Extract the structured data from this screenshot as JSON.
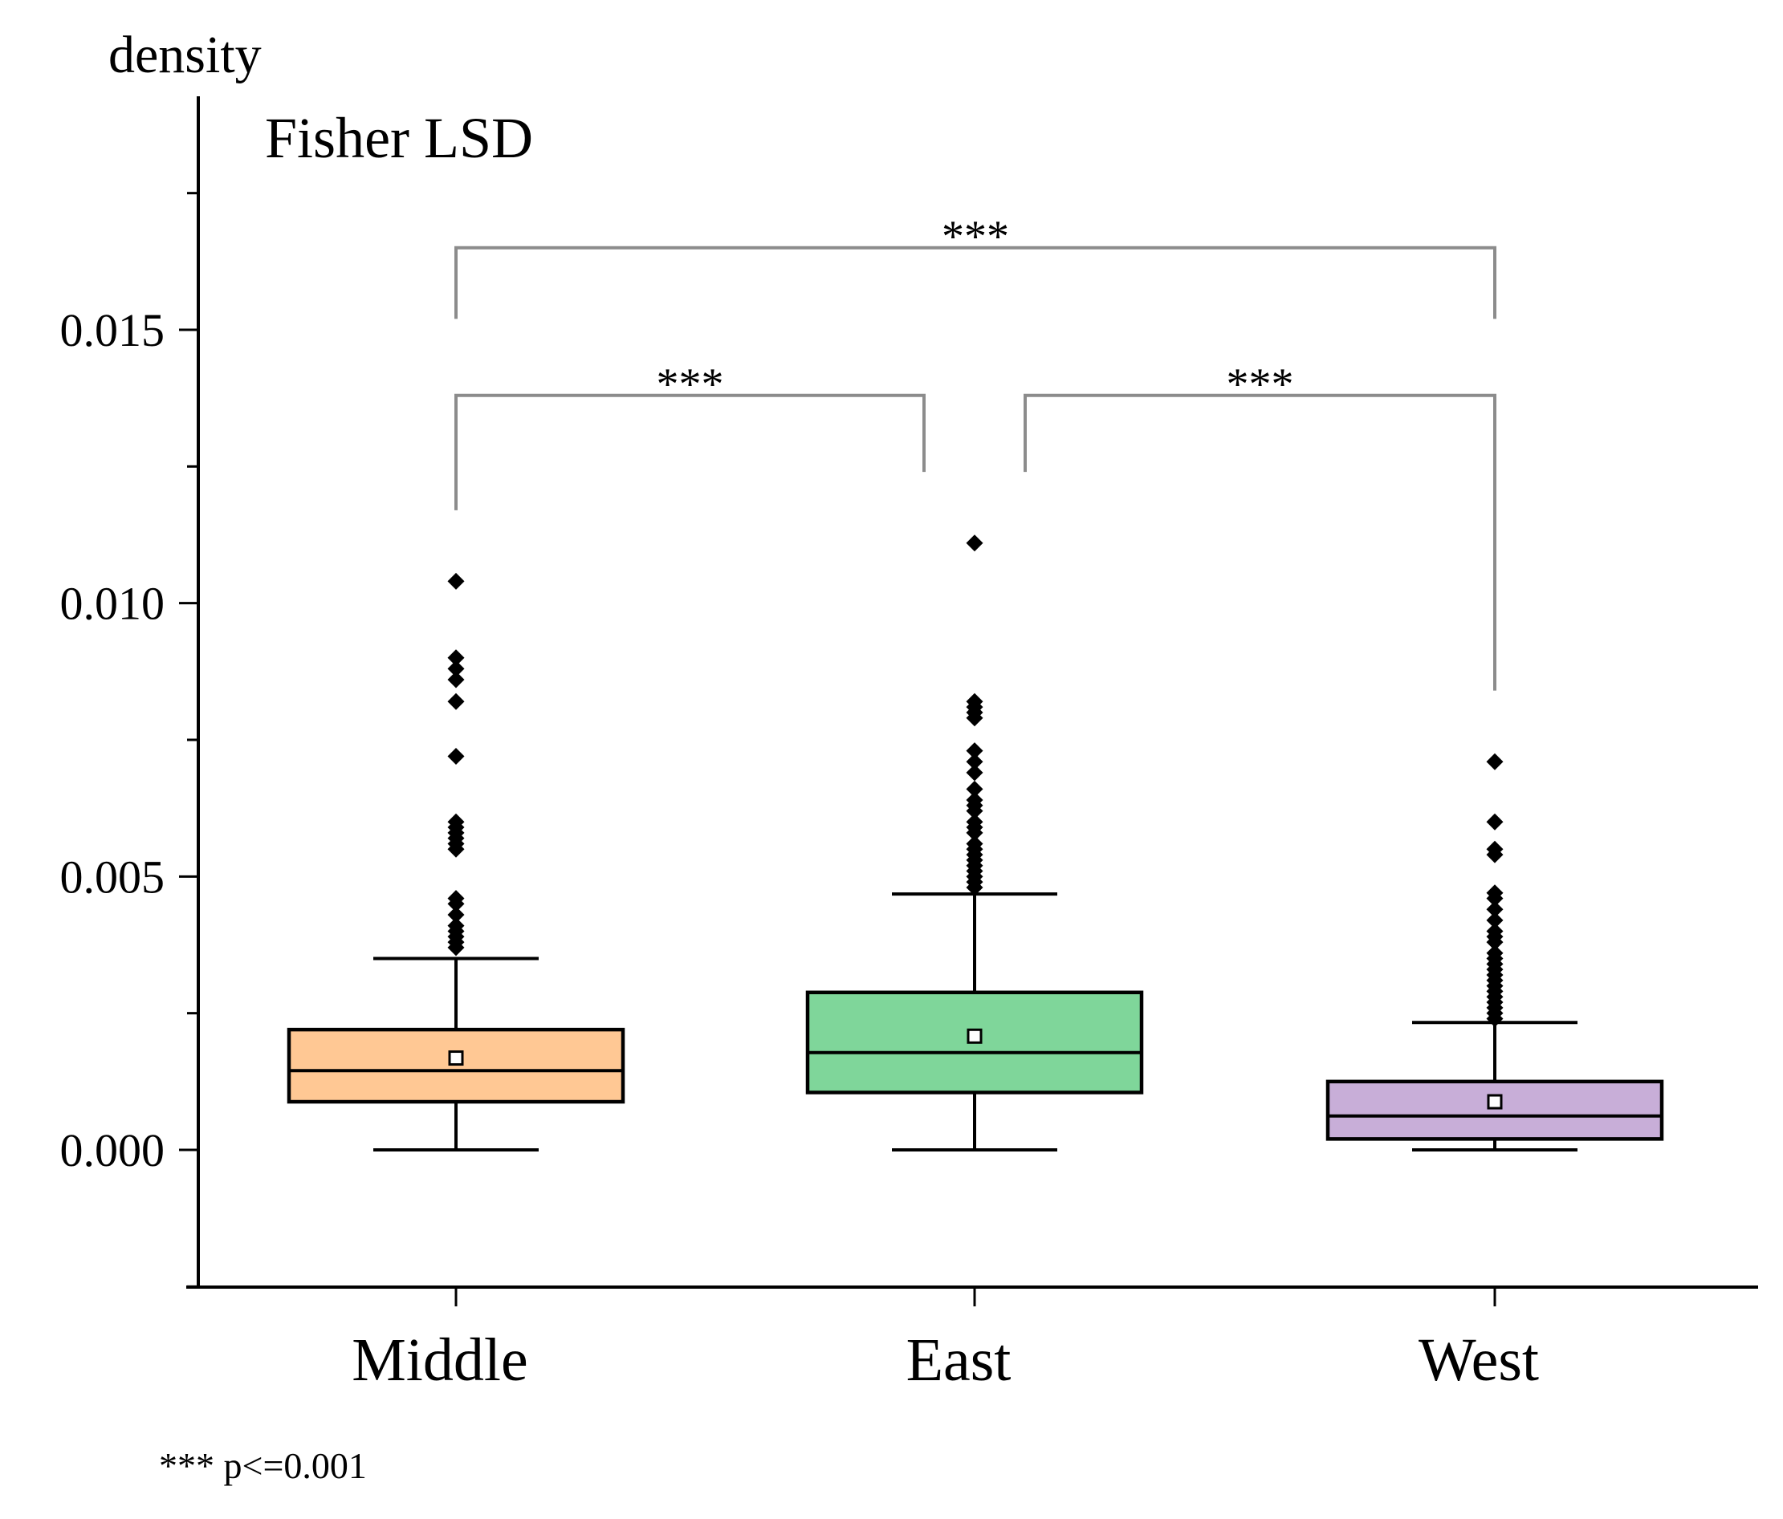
{
  "chart_data": {
    "type": "box",
    "title": "Fisher LSD",
    "ylabel": "density",
    "xlabel": "",
    "ylim": [
      -0.0025,
      0.0192
    ],
    "yticks": [
      0.0,
      0.005,
      0.01,
      0.015
    ],
    "ytick_labels": [
      "0.000",
      "0.005",
      "0.010",
      "0.015"
    ],
    "minor_ticks": [
      -0.0025,
      0.0025,
      0.0075,
      0.0125,
      0.0175
    ],
    "categories": [
      "Middle",
      "East",
      "West"
    ],
    "boxes": [
      {
        "name": "Middle",
        "color": "#ffc894",
        "whisker_low": 0.0,
        "q1": 0.00088,
        "median": 0.00145,
        "q3": 0.0022,
        "whisker_high": 0.0035,
        "mean": 0.00168,
        "outliers": [
          0.0104,
          0.009,
          0.0088,
          0.0086,
          0.0082,
          0.0072,
          0.006,
          0.0059,
          0.0058,
          0.0057,
          0.0056,
          0.0055,
          0.0046,
          0.0045,
          0.0043,
          0.0041,
          0.004,
          0.0039,
          0.0038,
          0.0037
        ]
      },
      {
        "name": "East",
        "color": "#7fd69a",
        "whisker_low": 0.0,
        "q1": 0.00105,
        "median": 0.00178,
        "q3": 0.00288,
        "whisker_high": 0.00468,
        "mean": 0.00208,
        "outliers": [
          0.0111,
          0.0082,
          0.0081,
          0.008,
          0.0079,
          0.0073,
          0.0071,
          0.0069,
          0.0066,
          0.0064,
          0.0063,
          0.0062,
          0.006,
          0.0059,
          0.0058,
          0.0056,
          0.0055,
          0.0054,
          0.0053,
          0.0052,
          0.0051,
          0.005,
          0.0049,
          0.0048
        ]
      },
      {
        "name": "West",
        "color": "#c8aed8",
        "whisker_low": 0.0,
        "q1": 0.0002,
        "median": 0.00062,
        "q3": 0.00125,
        "whisker_high": 0.00233,
        "mean": 0.00088,
        "outliers": [
          0.0071,
          0.006,
          0.0055,
          0.0054,
          0.0047,
          0.0046,
          0.0044,
          0.0042,
          0.004,
          0.0039,
          0.0038,
          0.0036,
          0.0035,
          0.0034,
          0.0033,
          0.0032,
          0.0031,
          0.003,
          0.0029,
          0.0028,
          0.0027,
          0.0026,
          0.0025,
          0.0024
        ]
      }
    ],
    "significance": [
      {
        "from": "Middle",
        "to": "West",
        "label": "***",
        "bar_y": 0.0165,
        "leg_low": [
          0.0152,
          0.0152
        ]
      },
      {
        "from": "Middle",
        "to": "East",
        "label": "***",
        "bar_y": 0.0138,
        "leg_low": [
          0.0117,
          0.0124
        ]
      },
      {
        "from": "East",
        "to": "West",
        "label": "***",
        "bar_y": 0.0138,
        "leg_low": [
          0.0124,
          0.0084
        ]
      }
    ],
    "footnote": "*** p<=0.001"
  }
}
